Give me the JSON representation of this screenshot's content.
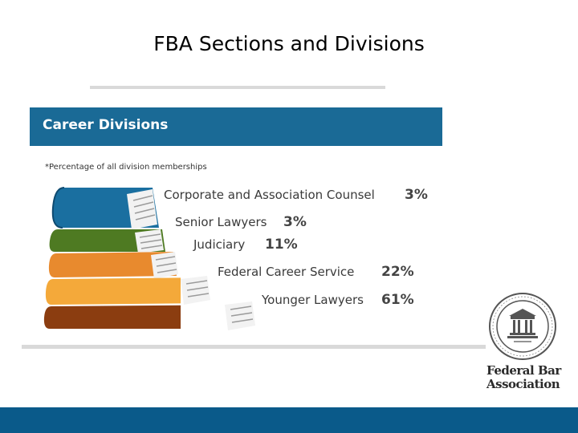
{
  "slide": {
    "title": "FBA Sections and Divisions"
  },
  "career_divisions": {
    "header": "Career Divisions",
    "note": "*Percentage of all division memberships",
    "books": [
      {
        "name": "Corporate and Association Counsel",
        "percent": "3%",
        "color": "#1a6fa0"
      },
      {
        "name": "Senior Lawyers",
        "percent": "3%",
        "color": "#4e7a22"
      },
      {
        "name": "Judiciary",
        "percent": "11%",
        "color": "#e88a2e"
      },
      {
        "name": "Federal Career Service",
        "percent": "22%",
        "color": "#f4a93a"
      },
      {
        "name": "Younger Lawyers",
        "percent": "61%",
        "color": "#8b3d10"
      }
    ]
  },
  "branding": {
    "name_line1": "Federal Bar",
    "name_line2": "Association",
    "seal_icon": "fba-seal-icon"
  },
  "colors": {
    "header_blue": "#1a6a96",
    "footer_blue": "#0a5a8a",
    "divider_gray": "#d9d9d9"
  }
}
